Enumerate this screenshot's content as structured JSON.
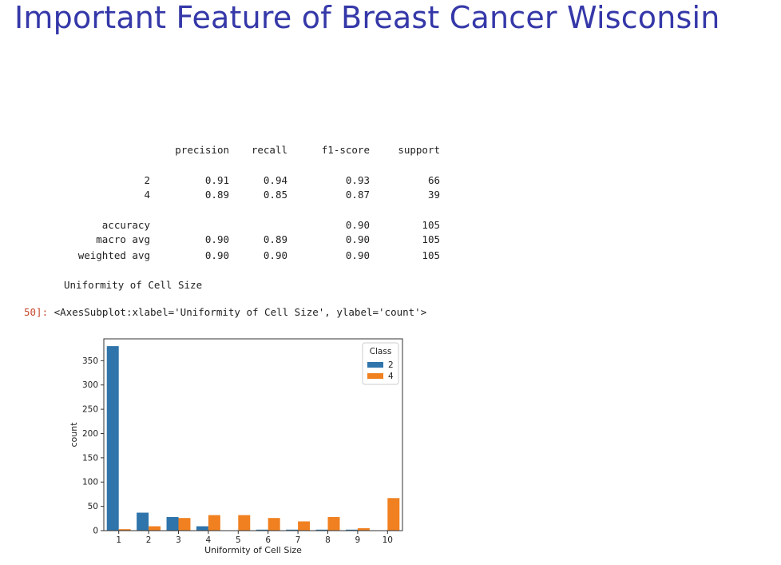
{
  "slide": {
    "title": "Important Feature of Breast Cancer Wisconsin"
  },
  "report": {
    "headers": [
      "precision",
      "recall",
      "f1-score",
      "support"
    ],
    "rows": [
      {
        "label": "2",
        "precision": "0.91",
        "recall": "0.94",
        "f1": "0.93",
        "support": "66"
      },
      {
        "label": "4",
        "precision": "0.89",
        "recall": "0.85",
        "f1": "0.87",
        "support": "39"
      },
      {
        "label": "accuracy",
        "precision": "",
        "recall": "",
        "f1": "0.90",
        "support": "105"
      },
      {
        "label": "macro avg",
        "precision": "0.90",
        "recall": "0.89",
        "f1": "0.90",
        "support": "105"
      },
      {
        "label": "weighted avg",
        "precision": "0.90",
        "recall": "0.90",
        "f1": "0.90",
        "support": "105"
      }
    ]
  },
  "feature_label": "Uniformity of Cell Size",
  "cell_output": {
    "prompt_number": "50]:",
    "repr": "<AxesSubplot:xlabel='Uniformity of Cell Size', ylabel='count'>"
  },
  "chart_data": {
    "type": "bar",
    "categories": [
      "1",
      "2",
      "3",
      "4",
      "5",
      "6",
      "7",
      "8",
      "9",
      "10"
    ],
    "series": [
      {
        "name": "2",
        "color": "#2f74ab",
        "values": [
          380,
          37,
          28,
          9,
          0,
          2,
          2,
          2,
          2,
          0
        ]
      },
      {
        "name": "4",
        "color": "#f08020",
        "values": [
          3,
          9,
          26,
          32,
          32,
          26,
          19,
          28,
          5,
          67
        ]
      }
    ],
    "xlabel": "Uniformity of Cell Size",
    "ylabel": "count",
    "ylim": [
      0,
      395
    ],
    "yticks": [
      0,
      50,
      100,
      150,
      200,
      250,
      300,
      350
    ],
    "legend": {
      "title": "Class",
      "placement": "top-right"
    },
    "grid": false
  }
}
